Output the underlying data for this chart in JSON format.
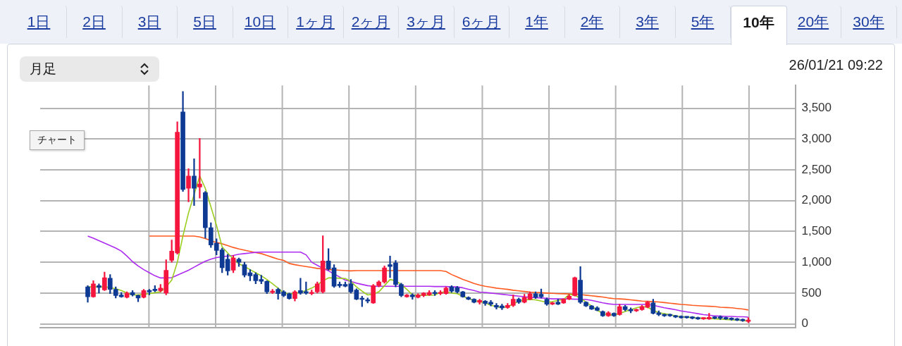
{
  "chart_data": {
    "type": "candlestick",
    "annotations": [
      "1日",
      "2日",
      "3日",
      "5日",
      "10日",
      "1ヶ月",
      "2ヶ月",
      "3ヶ月",
      "6ヶ月",
      "1年",
      "2年",
      "3年",
      "5年",
      "10年",
      "20年",
      "30年",
      "月足",
      "26/01/21 09:22",
      "チャート"
    ],
    "categories": [
      null,
      null,
      null,
      null,
      null,
      null,
      null,
      null,
      null,
      null,
      null,
      null,
      null,
      null,
      null,
      null,
      null,
      null,
      null,
      null,
      null,
      null,
      null,
      null,
      null,
      null,
      null,
      null,
      null,
      null,
      null,
      null,
      null,
      null,
      null,
      null,
      null,
      null,
      null,
      null,
      null,
      null,
      null,
      null,
      null,
      null,
      null,
      null,
      null,
      null,
      null,
      null,
      null,
      null,
      null,
      null,
      null,
      null,
      null,
      null,
      null,
      null,
      null,
      null,
      null,
      null,
      null,
      null,
      null,
      null,
      null,
      null,
      null,
      null,
      null,
      null,
      null,
      null,
      null,
      null,
      null,
      null,
      null,
      null,
      null,
      null,
      null,
      null,
      null,
      null,
      null,
      null,
      null,
      null,
      null,
      null,
      null,
      null,
      null,
      null,
      null,
      null,
      null,
      null,
      null,
      null,
      null,
      null,
      null,
      null,
      null,
      null,
      null,
      null,
      null,
      null,
      null,
      null,
      null,
      null,
      null,
      null,
      null,
      null,
      null,
      null,
      null,
      null,
      null,
      null,
      null,
      null,
      null,
      null,
      null
    ],
    "colors": [
      null,
      null,
      null,
      null,
      null,
      null,
      null,
      null,
      "#0f3a94",
      "#f5163f",
      "#0f3a94",
      "#f5163f",
      "#0f3a94",
      "#0f3a94",
      "#0f3a94",
      "#f5163f",
      "#0f3a94",
      "#0f3a94",
      "#f5163f",
      "#0f3a94",
      "#0f3a94",
      "#f5163f",
      "#f5163f",
      "#f5163f",
      "#f5163f",
      "#0f3a94",
      "#f5163f",
      "#0f3a94",
      "#f5163f",
      "#0f3a94",
      "#0f3a94",
      "#0f3a94",
      "#0f3a94",
      "#0f3a94",
      "#f5163f",
      "#0f3a94",
      "#0f3a94",
      "#0f3a94",
      "#0f3a94",
      "#0f3a94",
      "#0f3a94",
      "#f5163f",
      "#0f3a94",
      "#0f3a94",
      "#0f3a94",
      "#f5163f",
      "#0f3a94",
      "#0f3a94",
      "#f5163f",
      "#f5163f",
      "#f5163f",
      "#0f3a94",
      "#0f3a94",
      "#0f3a94",
      "#0f3a94",
      "#0f3a94",
      "#0f3a94",
      "#0f3a94",
      "#0f3a94",
      "#f5163f",
      "#f5163f",
      "#f5163f",
      "#0f3a94",
      "#0f3a94",
      "#0f3a94",
      "#f5163f",
      "#0f3a94",
      "#f5163f",
      "#f5163f",
      "#f5163f",
      "#0f3a94",
      "#f5163f",
      "#f5163f",
      "#0f3a94",
      "#0f3a94",
      "#0f3a94",
      "#0f3a94",
      "#0f3a94",
      "#f5163f",
      "#0f3a94",
      "#0f3a94",
      "#0f3a94",
      "#0f3a94",
      "#f5163f",
      "#f5163f",
      "#0f3a94",
      "#f5163f",
      "#f5163f",
      "#0f3a94",
      "#0f3a94",
      "#0f3a94",
      "#f5163f",
      "#0f3a94",
      "#f5163f",
      "#f5163f",
      "#f5163f",
      "#0f3a94",
      "#0f3a94",
      "#0f3a94",
      "#0f3a94",
      "#0f3a94",
      "#f5163f",
      "#0f3a94",
      "#f5163f",
      "#0f3a94",
      "#0f3a94",
      "#f5163f",
      "#f5163f",
      "#f5163f",
      "#0f3a94",
      "#0f3a94",
      "#0f3a94",
      "#0f3a94",
      "#0f3a94",
      "#0f3a94",
      "#0f3a94",
      "#0f3a94",
      "#0f3a94",
      "#f5163f",
      "#f5163f",
      "#0f3a94",
      "#0f3a94",
      "#0f3a94",
      "#0f3a94",
      "#0f3a94",
      "#0f3a94",
      "#f5163f",
      null,
      null,
      null,
      null,
      null,
      null,
      null,
      null
    ],
    "ohlc": [
      null,
      null,
      null,
      null,
      null,
      null,
      null,
      null,
      [
        600,
        620,
        350,
        440
      ],
      [
        440,
        700,
        430,
        650
      ],
      [
        620,
        650,
        500,
        590
      ],
      [
        550,
        840,
        540,
        750
      ],
      [
        740,
        800,
        490,
        560
      ],
      [
        560,
        600,
        420,
        460
      ],
      [
        470,
        510,
        430,
        440
      ],
      [
        430,
        520,
        420,
        500
      ],
      [
        510,
        540,
        450,
        470
      ],
      [
        460,
        470,
        360,
        420
      ],
      [
        430,
        560,
        420,
        540
      ],
      [
        540,
        560,
        470,
        520
      ],
      [
        560,
        620,
        520,
        540
      ],
      [
        540,
        640,
        520,
        580
      ],
      [
        500,
        1040,
        470,
        870
      ],
      [
        1030,
        1360,
        1000,
        1180
      ],
      [
        1150,
        3280,
        1130,
        3110
      ],
      [
        3440,
        3770,
        2150,
        2180
      ],
      [
        2200,
        2520,
        1980,
        2400
      ],
      [
        2400,
        2680,
        1920,
        2200
      ],
      [
        2220,
        3010,
        2040,
        2270
      ],
      [
        2130,
        2150,
        1390,
        1560
      ],
      [
        1560,
        1640,
        1240,
        1280
      ],
      [
        1310,
        1380,
        1120,
        1190
      ],
      [
        1200,
        1230,
        830,
        910
      ],
      [
        1050,
        1130,
        790,
        860
      ],
      [
        870,
        1110,
        830,
        1070
      ],
      [
        1050,
        1070,
        930,
        1000
      ],
      [
        960,
        1000,
        760,
        790
      ],
      [
        830,
        880,
        700,
        780
      ],
      [
        800,
        830,
        650,
        700
      ],
      [
        720,
        790,
        650,
        690
      ],
      [
        690,
        700,
        490,
        520
      ],
      [
        510,
        560,
        490,
        530
      ],
      [
        560,
        580,
        400,
        490
      ],
      [
        520,
        540,
        440,
        460
      ],
      [
        490,
        500,
        400,
        410
      ],
      [
        410,
        540,
        370,
        520
      ],
      [
        540,
        740,
        480,
        500
      ],
      [
        520,
        680,
        480,
        500
      ],
      [
        490,
        550,
        470,
        510
      ],
      [
        520,
        680,
        500,
        650
      ],
      [
        520,
        1430,
        500,
        1020
      ],
      [
        1020,
        1220,
        870,
        890
      ],
      [
        910,
        960,
        590,
        610
      ],
      [
        640,
        680,
        590,
        620
      ],
      [
        640,
        680,
        600,
        610
      ],
      [
        650,
        720,
        500,
        520
      ],
      [
        550,
        570,
        390,
        400
      ],
      [
        410,
        450,
        280,
        395
      ],
      [
        390,
        420,
        340,
        370
      ],
      [
        340,
        640,
        330,
        620
      ],
      [
        620,
        700,
        600,
        680
      ],
      [
        680,
        940,
        660,
        910
      ],
      [
        960,
        1100,
        750,
        930
      ],
      [
        990,
        1030,
        600,
        640
      ],
      [
        640,
        660,
        440,
        460
      ],
      [
        440,
        480,
        430,
        470
      ],
      [
        470,
        490,
        400,
        440
      ],
      [
        430,
        490,
        420,
        470
      ],
      [
        460,
        510,
        440,
        500
      ],
      [
        470,
        540,
        460,
        510
      ],
      [
        510,
        540,
        460,
        490
      ],
      [
        490,
        540,
        470,
        510
      ],
      [
        490,
        600,
        480,
        580
      ],
      [
        600,
        620,
        510,
        530
      ],
      [
        590,
        610,
        500,
        520
      ],
      [
        520,
        530,
        430,
        440
      ],
      [
        430,
        440,
        390,
        400
      ],
      [
        400,
        410,
        340,
        350
      ],
      [
        350,
        400,
        320,
        380
      ],
      [
        370,
        380,
        300,
        330
      ],
      [
        350,
        380,
        290,
        320
      ],
      [
        300,
        330,
        240,
        270
      ],
      [
        290,
        320,
        230,
        260
      ],
      [
        265,
        330,
        250,
        300
      ],
      [
        300,
        470,
        280,
        400
      ],
      [
        400,
        420,
        330,
        350
      ],
      [
        350,
        480,
        340,
        430
      ],
      [
        400,
        520,
        390,
        490
      ],
      [
        490,
        520,
        410,
        430
      ],
      [
        480,
        565,
        420,
        440
      ],
      [
        400,
        420,
        300,
        320
      ],
      [
        320,
        350,
        310,
        340
      ],
      [
        350,
        400,
        310,
        320
      ],
      [
        340,
        410,
        330,
        400
      ],
      [
        400,
        480,
        390,
        450
      ],
      [
        460,
        760,
        450,
        750
      ],
      [
        710,
        930,
        330,
        350
      ],
      [
        350,
        360,
        280,
        290
      ],
      [
        290,
        300,
        230,
        240
      ],
      [
        260,
        280,
        210,
        220
      ],
      [
        200,
        210,
        120,
        130
      ],
      [
        130,
        200,
        120,
        180
      ],
      [
        170,
        180,
        120,
        130
      ],
      [
        150,
        320,
        140,
        280
      ],
      [
        280,
        300,
        210,
        230
      ],
      [
        230,
        260,
        180,
        210
      ],
      [
        210,
        240,
        200,
        230
      ],
      [
        230,
        300,
        220,
        280
      ],
      [
        270,
        370,
        260,
        350
      ],
      [
        340,
        400,
        160,
        170
      ],
      [
        180,
        210,
        130,
        150
      ],
      [
        150,
        160,
        120,
        130
      ],
      [
        150,
        160,
        120,
        130
      ],
      [
        130,
        140,
        100,
        110
      ],
      [
        120,
        130,
        90,
        100
      ],
      [
        110,
        120,
        90,
        100
      ],
      [
        110,
        120,
        80,
        90
      ],
      [
        100,
        110,
        70,
        80
      ],
      [
        80,
        100,
        70,
        90
      ],
      [
        80,
        170,
        70,
        105
      ],
      [
        110,
        120,
        80,
        90
      ],
      [
        110,
        130,
        70,
        90
      ],
      [
        100,
        110,
        70,
        80
      ],
      [
        90,
        100,
        60,
        70
      ],
      [
        80,
        90,
        50,
        60
      ],
      [
        70,
        80,
        40,
        50
      ],
      [
        40,
        100,
        20,
        60
      ],
      null,
      null,
      null,
      null,
      null,
      null,
      null,
      null
    ],
    "series": [
      {
        "type": "line",
        "color": "#9acd1e",
        "values": [
          null,
          null,
          null,
          null,
          null,
          null,
          null,
          null,
          600,
          600,
          600,
          600,
          590,
          570,
          540,
          500,
          470,
          470,
          480,
          490,
          505,
          520,
          600,
          710,
          1000,
          1425,
          1800,
          2100,
          2400,
          2200,
          1900,
          1600,
          1250,
          1150,
          1050,
          975,
          930,
          880,
          830,
          780,
          720,
          650,
          580,
          500,
          485,
          495,
          510,
          540,
          580,
          630,
          700,
          745,
          745,
          740,
          735,
          690,
          600,
          530,
          470,
          480,
          520,
          620,
          720,
          700,
          640,
          560,
          470,
          465,
          465,
          465,
          470,
          510,
          520,
          500,
          490,
          450,
          410,
          380,
          360,
          340,
          300,
          280,
          260,
          280,
          320,
          370,
          385,
          395,
          390,
          370,
          350,
          360,
          380,
          395,
          480,
          460,
          420,
          350,
          290,
          220,
          170,
          145,
          145,
          170,
          200,
          230,
          260,
          280,
          270,
          220,
          180,
          165,
          150,
          130,
          115,
          110,
          100,
          95,
          90,
          85,
          80,
          75,
          70,
          65,
          60,
          55,
          45,
          null,
          null,
          null,
          null,
          null,
          null,
          null,
          null
        ]
      },
      {
        "type": "line",
        "color": "#ad2cf0",
        "values": [
          null,
          null,
          null,
          null,
          null,
          null,
          null,
          null,
          1425,
          1390,
          1350,
          1310,
          1270,
          1230,
          1180,
          1100,
          1010,
          940,
          880,
          830,
          780,
          745,
          745,
          750,
          790,
          830,
          870,
          920,
          970,
          1015,
          1050,
          1075,
          1090,
          1100,
          1110,
          1130,
          1140,
          1150,
          1160,
          1165,
          1165,
          1165,
          1165,
          1165,
          1165,
          1165,
          1165,
          1120,
          1000,
          950,
          900,
          860,
          810,
          760,
          710,
          690,
          660,
          640,
          620,
          610,
          610,
          610,
          610,
          610,
          610,
          610,
          610,
          610,
          610,
          610,
          605,
          605,
          605,
          600,
          600,
          585,
          560,
          540,
          515,
          510,
          500,
          490,
          480,
          470,
          460,
          450,
          440,
          430,
          425,
          420,
          415,
          405,
          405,
          405,
          405,
          400,
          400,
          395,
          380,
          360,
          340,
          325,
          315,
          315,
          315,
          315,
          315,
          315,
          315,
          300,
          280,
          260,
          245,
          230,
          210,
          195,
          180,
          165,
          150,
          140,
          130,
          125,
          120,
          120,
          115,
          115,
          110,
          null,
          null,
          null,
          null,
          null,
          null,
          null,
          null
        ]
      },
      {
        "type": "line",
        "color": "#ff5a1f",
        "values": [
          null,
          null,
          null,
          null,
          null,
          null,
          null,
          null,
          null,
          null,
          null,
          null,
          null,
          null,
          null,
          null,
          null,
          null,
          null,
          1425,
          1425,
          1425,
          1425,
          1425,
          1425,
          1425,
          1425,
          1425,
          1410,
          1385,
          1350,
          1320,
          1300,
          1270,
          1240,
          1215,
          1195,
          1175,
          1155,
          1140,
          1110,
          1080,
          1050,
          1030,
          980,
          960,
          945,
          930,
          915,
          900,
          890,
          880,
          875,
          870,
          865,
          860,
          865,
          865,
          865,
          865,
          865,
          865,
          865,
          865,
          865,
          865,
          865,
          865,
          865,
          865,
          865,
          865,
          850,
          800,
          760,
          720,
          690,
          655,
          630,
          610,
          595,
          580,
          570,
          560,
          545,
          535,
          525,
          515,
          510,
          505,
          500,
          495,
          490,
          488,
          485,
          480,
          475,
          465,
          455,
          445,
          435,
          420,
          410,
          405,
          400,
          390,
          380,
          370,
          365,
          360,
          355,
          345,
          335,
          325,
          315,
          310,
          300,
          295,
          290,
          285,
          280,
          270,
          265,
          260,
          250,
          240,
          225,
          null,
          null,
          null,
          null,
          null,
          null,
          null,
          null
        ]
      }
    ],
    "ylim": [
      -60,
      3870
    ],
    "yticks": [
      0,
      500,
      {
        "value": 1000,
        "label": "1,000"
      },
      {
        "value": 1500,
        "label": "1,500"
      },
      {
        "value": 2000,
        "label": "2,000"
      },
      {
        "value": 2500,
        "label": "2,500"
      },
      {
        "value": 3000,
        "label": "3,000"
      },
      {
        "value": 3500,
        "label": "3,500"
      }
    ],
    "grid": true
  }
}
